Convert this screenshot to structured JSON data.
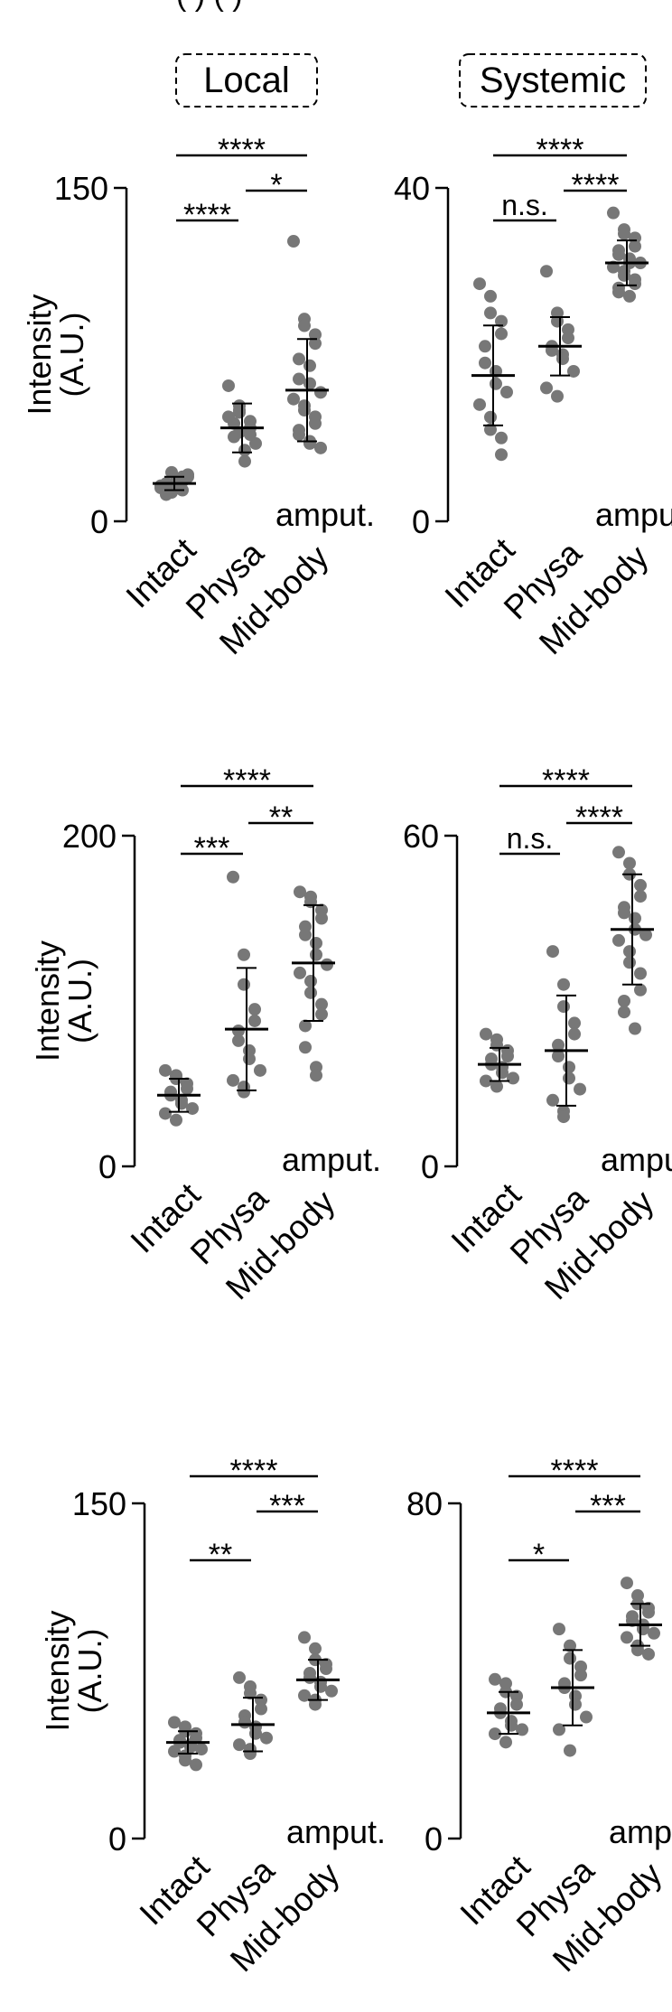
{
  "figure": {
    "cropped_top_text": "(   )                (   )",
    "column_headers": [
      "Local",
      "Systemic"
    ],
    "y_axis_label_line1": "Intensity",
    "y_axis_label_line2": "(A.U.)",
    "amput_label": "amput.",
    "colors": {
      "point": "#777777",
      "ink": "#000000"
    }
  },
  "chart_data": [
    {
      "type": "scatter",
      "panel": "row1-local",
      "categories": [
        "Intact",
        "Physa",
        "Mid-body"
      ],
      "ylim": [
        0,
        150
      ],
      "yticks": [
        0,
        150
      ],
      "grid": false,
      "series": [
        {
          "category": "Intact",
          "mean": 17,
          "sd": 3,
          "points": [
            15,
            13,
            16,
            18,
            20,
            14,
            12,
            19,
            17,
            21,
            16,
            22,
            15,
            18,
            14,
            13,
            17,
            19,
            16,
            20
          ]
        },
        {
          "category": "Physa",
          "mean": 42,
          "sd": 11,
          "points": [
            61,
            52,
            49,
            45,
            42,
            44,
            38,
            32,
            27,
            35,
            47,
            50,
            40,
            39
          ]
        },
        {
          "category": "Mid-body",
          "mean": 59,
          "sd": 23,
          "points": [
            126,
            91,
            88,
            84,
            80,
            73,
            64,
            70,
            62,
            58,
            55,
            52,
            50,
            47,
            44,
            41,
            39,
            35,
            36,
            33
          ]
        }
      ],
      "significance": [
        {
          "label": "****",
          "from": "Intact",
          "to": "Physa"
        },
        {
          "label": "*",
          "from": "Physa",
          "to": "Mid-body"
        },
        {
          "label": "****",
          "from": "Intact",
          "to": "Mid-body"
        }
      ]
    },
    {
      "type": "scatter",
      "panel": "row1-systemic",
      "categories": [
        "Intact",
        "Physa",
        "Mid-body"
      ],
      "ylim": [
        0,
        40
      ],
      "yticks": [
        0,
        40
      ],
      "grid": false,
      "series": [
        {
          "category": "Intact",
          "mean": 17.5,
          "sd": 6,
          "points": [
            28.5,
            27,
            25,
            24,
            22.5,
            21,
            19,
            18,
            16.5,
            15.5,
            14,
            12.5,
            11,
            10,
            8
          ]
        },
        {
          "category": "Physa",
          "mean": 21,
          "sd": 3.5,
          "points": [
            30,
            25,
            24,
            23,
            22,
            21,
            20.5,
            20,
            19.5,
            18,
            16,
            15
          ]
        },
        {
          "category": "Mid-body",
          "mean": 31,
          "sd": 2.7,
          "points": [
            37,
            35,
            34.5,
            34,
            33,
            32.5,
            32,
            31.5,
            31,
            31,
            30.5,
            30,
            29.5,
            29,
            28.5,
            28,
            27.5,
            27
          ]
        }
      ],
      "significance": [
        {
          "label": "n.s.",
          "from": "Intact",
          "to": "Physa"
        },
        {
          "label": "****",
          "from": "Physa",
          "to": "Mid-body"
        },
        {
          "label": "****",
          "from": "Intact",
          "to": "Mid-body"
        }
      ]
    },
    {
      "type": "scatter",
      "panel": "row2-local",
      "categories": [
        "Intact",
        "Physa",
        "Mid-body"
      ],
      "ylim": [
        0,
        200
      ],
      "yticks": [
        0,
        200
      ],
      "grid": false,
      "series": [
        {
          "category": "Intact",
          "mean": 43,
          "sd": 10,
          "points": [
            58,
            55,
            53,
            50,
            47,
            45,
            43,
            40,
            38,
            35,
            32,
            28
          ]
        },
        {
          "category": "Physa",
          "mean": 83,
          "sd": 37,
          "points": [
            175,
            128,
            110,
            95,
            88,
            82,
            76,
            70,
            65,
            58,
            52,
            48,
            45
          ]
        },
        {
          "category": "Mid-body",
          "mean": 123,
          "sd": 35,
          "points": [
            166,
            163,
            160,
            155,
            150,
            145,
            140,
            135,
            128,
            122,
            117,
            112,
            105,
            98,
            92,
            85,
            72,
            60,
            55
          ]
        }
      ],
      "significance": [
        {
          "label": "***",
          "from": "Intact",
          "to": "Physa"
        },
        {
          "label": "**",
          "from": "Physa",
          "to": "Mid-body"
        },
        {
          "label": "****",
          "from": "Intact",
          "to": "Mid-body"
        }
      ]
    },
    {
      "type": "scatter",
      "panel": "row2-systemic",
      "categories": [
        "Intact",
        "Physa",
        "Mid-body"
      ],
      "ylim": [
        0,
        60
      ],
      "yticks": [
        0,
        60
      ],
      "grid": false,
      "series": [
        {
          "category": "Intact",
          "mean": 18.5,
          "sd": 3,
          "points": [
            24,
            23,
            22,
            21,
            20,
            19.5,
            18.5,
            18,
            17,
            16,
            15.5,
            14.5
          ]
        },
        {
          "category": "Physa",
          "mean": 21,
          "sd": 10,
          "points": [
            39,
            33,
            29,
            26,
            24,
            22,
            20,
            18,
            16,
            14,
            12,
            10,
            9
          ]
        },
        {
          "category": "Mid-body",
          "mean": 43,
          "sd": 10,
          "points": [
            57,
            55,
            53,
            51,
            49,
            47,
            46,
            45,
            43,
            42,
            41,
            39,
            37,
            35,
            32,
            30,
            28,
            25
          ]
        }
      ],
      "significance": [
        {
          "label": "n.s.",
          "from": "Intact",
          "to": "Physa"
        },
        {
          "label": "****",
          "from": "Physa",
          "to": "Mid-body"
        },
        {
          "label": "****",
          "from": "Intact",
          "to": "Mid-body"
        }
      ]
    },
    {
      "type": "scatter",
      "panel": "row3-local",
      "categories": [
        "Intact",
        "Physa",
        "Mid-body"
      ],
      "ylim": [
        0,
        150
      ],
      "yticks": [
        0,
        150
      ],
      "grid": false,
      "series": [
        {
          "category": "Intact",
          "mean": 43,
          "sd": 5,
          "points": [
            52,
            50,
            48,
            47,
            45,
            44,
            43,
            42,
            41,
            40,
            39,
            37,
            35,
            33
          ]
        },
        {
          "category": "Physa",
          "mean": 51,
          "sd": 12,
          "points": [
            72,
            68,
            65,
            62,
            58,
            55,
            52,
            50,
            47,
            45,
            42,
            40,
            38
          ]
        },
        {
          "category": "Mid-body",
          "mean": 71,
          "sd": 9,
          "points": [
            90,
            85,
            80,
            78,
            76,
            74,
            72,
            70,
            68,
            66,
            64,
            62,
            60
          ]
        }
      ],
      "significance": [
        {
          "label": "**",
          "from": "Intact",
          "to": "Physa"
        },
        {
          "label": "***",
          "from": "Physa",
          "to": "Mid-body"
        },
        {
          "label": "****",
          "from": "Intact",
          "to": "Mid-body"
        }
      ]
    },
    {
      "type": "scatter",
      "panel": "row3-systemic",
      "categories": [
        "Intact",
        "Physa",
        "Mid-body"
      ],
      "ylim": [
        0,
        80
      ],
      "yticks": [
        0,
        80
      ],
      "grid": false,
      "series": [
        {
          "category": "Intact",
          "mean": 30,
          "sd": 5,
          "points": [
            38,
            37,
            35,
            34,
            32,
            31,
            30,
            28,
            27,
            26,
            25,
            23
          ]
        },
        {
          "category": "Physa",
          "mean": 36,
          "sd": 9,
          "points": [
            50,
            46,
            43,
            41,
            39,
            37,
            36,
            34,
            32,
            29,
            26,
            21
          ]
        },
        {
          "category": "Mid-body",
          "mean": 51,
          "sd": 5,
          "points": [
            61,
            58,
            56,
            55,
            54,
            53,
            52,
            51,
            50,
            49,
            48,
            46,
            45,
            44
          ]
        }
      ],
      "significance": [
        {
          "label": "*",
          "from": "Intact",
          "to": "Physa"
        },
        {
          "label": "***",
          "from": "Physa",
          "to": "Mid-body"
        },
        {
          "label": "****",
          "from": "Intact",
          "to": "Mid-body"
        }
      ]
    }
  ]
}
